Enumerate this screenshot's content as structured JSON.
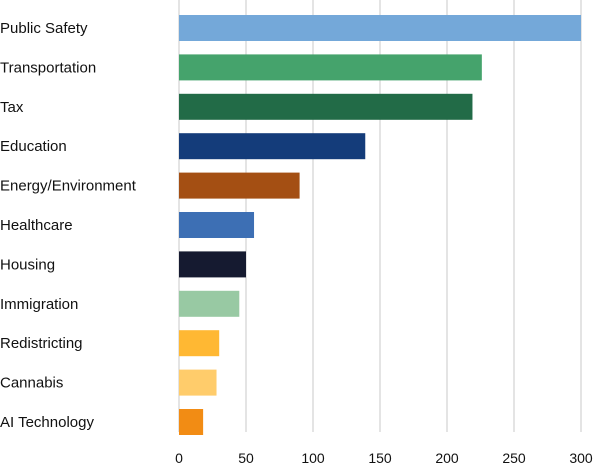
{
  "chart_data": {
    "type": "bar",
    "orientation": "horizontal",
    "title": "",
    "xlabel": "",
    "ylabel": "",
    "categories": [
      "Public Safety",
      "Transportation",
      "Tax",
      "Education",
      "Energy/Environment",
      "Healthcare",
      "Housing",
      "Immigration",
      "Redistricting",
      "Cannabis",
      "AI Technology"
    ],
    "values": [
      300,
      226,
      219,
      139,
      90,
      56,
      50,
      45,
      30,
      28,
      18
    ],
    "colors": [
      "#74a8d9",
      "#45a36c",
      "#226b47",
      "#143c7a",
      "#a44f13",
      "#3d6fb4",
      "#151a30",
      "#98c9a3",
      "#ffb833",
      "#ffcc6b",
      "#f28c14"
    ],
    "xlim": [
      0,
      300
    ],
    "xticks": [
      0,
      50,
      100,
      150,
      200,
      250,
      300
    ],
    "grid": true,
    "grid_color": "#c8c8c8",
    "legend": "none"
  }
}
